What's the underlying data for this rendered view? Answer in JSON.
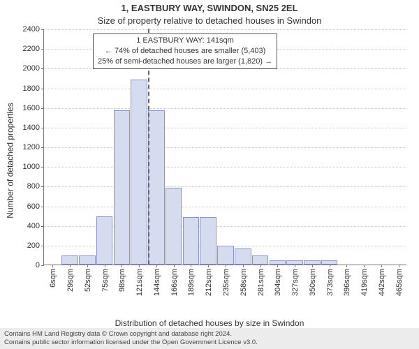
{
  "header": {
    "title": "1, EASTBURY WAY, SWINDON, SN25 2EL",
    "subtitle": "Size of property relative to detached houses in Swindon"
  },
  "axes": {
    "ylabel": "Number of detached properties",
    "xlabel": "Distribution of detached houses by size in Swindon",
    "ylim_max": 2400,
    "ytick_step": 200,
    "grid_color": "#c8c8c8",
    "axis_color": "#777777"
  },
  "chart": {
    "type": "histogram",
    "bar_fill": "#d6dcf0",
    "bar_stroke": "#8a94c8",
    "bar_width_ratio": 0.95,
    "categories": [
      "6sqm",
      "29sqm",
      "52sqm",
      "75sqm",
      "98sqm",
      "121sqm",
      "144sqm",
      "166sqm",
      "189sqm",
      "212sqm",
      "235sqm",
      "258sqm",
      "281sqm",
      "304sqm",
      "327sqm",
      "350sqm",
      "373sqm",
      "396sqm",
      "419sqm",
      "442sqm",
      "465sqm"
    ],
    "values": [
      0,
      90,
      90,
      490,
      1570,
      1880,
      1570,
      780,
      480,
      480,
      190,
      160,
      90,
      40,
      40,
      40,
      40,
      0,
      0,
      0,
      0
    ],
    "reference_line": {
      "after_index": 5,
      "color": "#666666",
      "dash": true
    }
  },
  "annotation": {
    "line1": "1 EASTBURY WAY: 141sqm",
    "line2": "← 74% of detached houses are smaller (5,403)",
    "line3": "25% of semi-detached houses are larger (1,820) →",
    "border_color": "#555555",
    "background": "#ffffff",
    "fontsize": 11
  },
  "footer": {
    "line1": "Contains HM Land Registry data © Crown copyright and database right 2024.",
    "line2": "Contains public sector information licensed under the Open Government Licence v3.0."
  },
  "colors": {
    "background": "#ffffff",
    "footer_bg": "#ececec",
    "text": "#333333"
  }
}
